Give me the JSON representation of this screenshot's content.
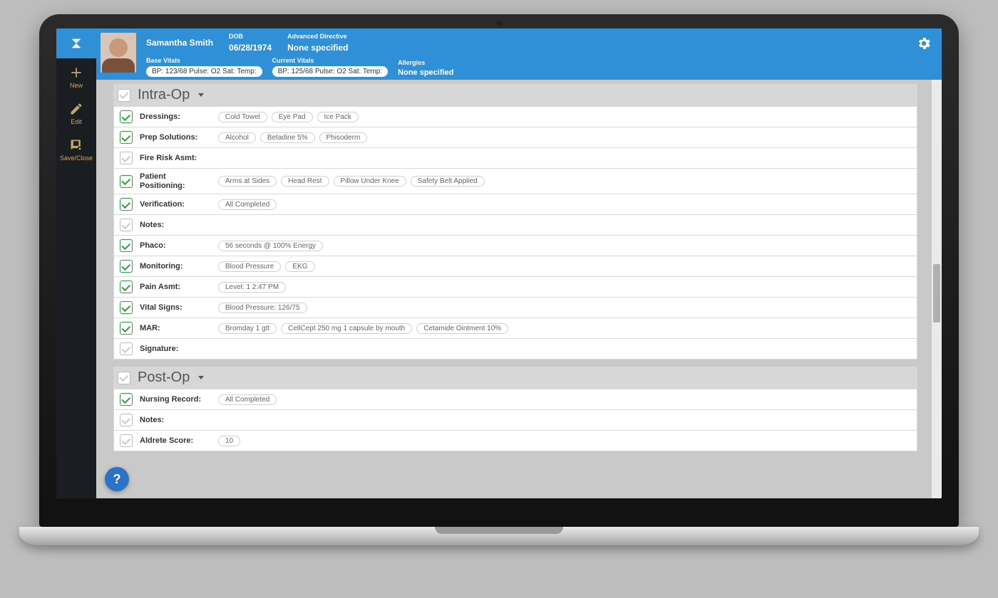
{
  "colors": {
    "brand": "#2f90d8",
    "sidebar_bg": "#1a1d22",
    "sidebar_fg": "#c9a95f",
    "chk_on": "#2e9e44",
    "canvas_bg": "#c9c9c9",
    "help_bg": "#2a73c7"
  },
  "sidebar": {
    "items": [
      {
        "label": "New"
      },
      {
        "label": "Edit"
      },
      {
        "label": "Save/Close"
      }
    ]
  },
  "patient": {
    "name": "Samantha Smith",
    "dob_label": "DOB",
    "dob": "06/28/1974",
    "directive_label": "Advanced Directive",
    "directive_value": "None specified",
    "base_vitals_label": "Base Vitals",
    "base_vitals_value": "BP: 123/68 Pulse: O2 Sat: Temp:",
    "current_vitals_label": "Current Vitals",
    "current_vitals_value": "BP: 125/68 Pulse: O2 Sat: Temp:",
    "allergies_label": "Allergies",
    "allergies_value": "None specified"
  },
  "sections": [
    {
      "title": "Intra-Op",
      "checked": false,
      "rows": [
        {
          "checked": true,
          "label": "Dressings:",
          "chips": [
            "Cold Towel",
            "Eye Pad",
            "Ice Pack"
          ]
        },
        {
          "checked": true,
          "label": "Prep Solutions:",
          "chips": [
            "Alcohol",
            "Betadine 5%",
            "Phisoderm"
          ]
        },
        {
          "checked": false,
          "label": "Fire Risk Asmt:",
          "chips": []
        },
        {
          "checked": true,
          "label": "Patient Positioning:",
          "chips": [
            "Arms at Sides",
            "Head Rest",
            "Pillow Under Knee",
            "Safety Belt Applied"
          ]
        },
        {
          "checked": true,
          "label": "Verification:",
          "chips": [
            "All Completed"
          ]
        },
        {
          "checked": false,
          "label": "Notes:",
          "chips": []
        },
        {
          "checked": true,
          "label": "Phaco:",
          "chips": [
            "56 seconds @ 100% Energy"
          ]
        },
        {
          "checked": true,
          "label": "Monitoring:",
          "chips": [
            "Blood Pressure",
            "EKG"
          ]
        },
        {
          "checked": true,
          "label": "Pain Asmt:",
          "chips": [
            "Level: 1 2:47 PM"
          ]
        },
        {
          "checked": true,
          "label": "Vital Signs:",
          "chips": [
            "Blood Pressure: 126/75"
          ]
        },
        {
          "checked": true,
          "label": "MAR:",
          "chips": [
            "Bromday 1 gtt",
            "CellCept 250 mg 1 capsule by mouth",
            "Cetamide Ointment 10%"
          ]
        },
        {
          "checked": false,
          "label": "Signature:",
          "chips": []
        }
      ]
    },
    {
      "title": "Post-Op",
      "checked": false,
      "rows": [
        {
          "checked": true,
          "label": "Nursing Record:",
          "chips": [
            "All Completed"
          ]
        },
        {
          "checked": false,
          "label": "Notes:",
          "chips": []
        },
        {
          "checked": false,
          "label": "Aldrete Score:",
          "chips": [
            "10"
          ]
        }
      ]
    }
  ],
  "scrollbar": {
    "thumb_top_pct": 44,
    "thumb_height_pct": 14
  }
}
